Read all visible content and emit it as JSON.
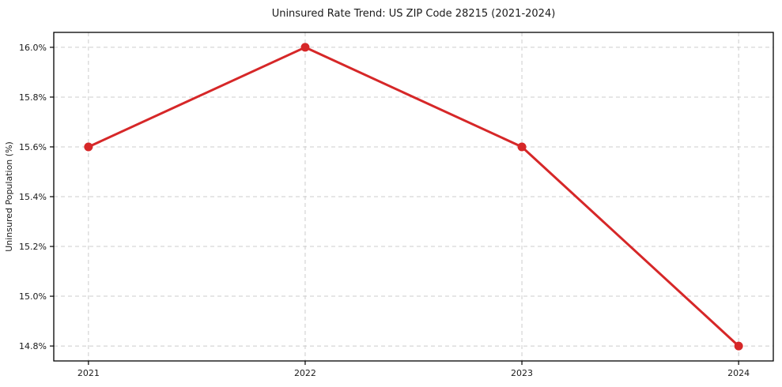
{
  "chart_data": {
    "type": "line",
    "title": "Uninsured Rate Trend: US ZIP Code 28215 (2021-2024)",
    "xlabel": "",
    "ylabel": "Uninsured Population (%)",
    "x": [
      2021,
      2022,
      2023,
      2024
    ],
    "series": [
      {
        "name": "Uninsured Population (%)",
        "values": [
          15.6,
          16.0,
          15.6,
          14.8
        ]
      }
    ],
    "x_ticks": [
      {
        "value": 2021,
        "label": "2021"
      },
      {
        "value": 2022,
        "label": "2022"
      },
      {
        "value": 2023,
        "label": "2023"
      },
      {
        "value": 2024,
        "label": "2024"
      }
    ],
    "y_ticks": [
      {
        "value": 14.8,
        "label": "14.8%"
      },
      {
        "value": 15.0,
        "label": "15.0%"
      },
      {
        "value": 15.2,
        "label": "15.2%"
      },
      {
        "value": 15.4,
        "label": "15.4%"
      },
      {
        "value": 15.6,
        "label": "15.6%"
      },
      {
        "value": 15.8,
        "label": "15.8%"
      },
      {
        "value": 16.0,
        "label": "16.0%"
      }
    ],
    "xlim": [
      2020.84,
      2024.16
    ],
    "ylim": [
      14.74,
      16.06
    ],
    "grid": true,
    "legend": "none",
    "colors": {
      "line": "#d62728",
      "marker": "#d62728",
      "grid": "#cccccc",
      "frame": "#000000",
      "background": "#ffffff",
      "text": "#1a1a1a"
    }
  }
}
